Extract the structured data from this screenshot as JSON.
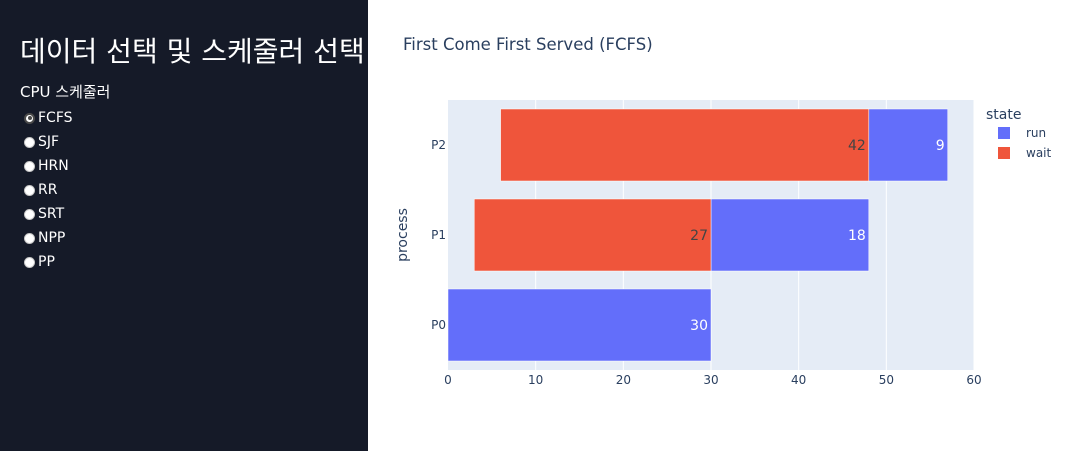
{
  "sidebar": {
    "title": "데이터 선택 및 스케줄러 선택",
    "group_label": "CPU 스케줄러",
    "options": [
      {
        "label": "FCFS",
        "checked": true
      },
      {
        "label": "SJF",
        "checked": false
      },
      {
        "label": "HRN",
        "checked": false
      },
      {
        "label": "RR",
        "checked": false
      },
      {
        "label": "SRT",
        "checked": false
      },
      {
        "label": "NPP",
        "checked": false
      },
      {
        "label": "PP",
        "checked": false
      }
    ]
  },
  "colors": {
    "sidebar_bg": "#151a28",
    "plot_bg": "#e5ecf6",
    "run": "#636efa",
    "wait": "#ef553b"
  },
  "chart_data": {
    "type": "bar",
    "orientation": "horizontal",
    "barmode": "stack",
    "title": "First Come First Served (FCFS)",
    "xlabel": "",
    "ylabel": "process",
    "xlim": [
      0,
      60
    ],
    "xticks": [
      0,
      10,
      20,
      30,
      40,
      50,
      60
    ],
    "categories": [
      "P0",
      "P1",
      "P2"
    ],
    "legend_title": "state",
    "legend_position": "right",
    "series": [
      {
        "name": "run",
        "color": "#636efa",
        "bars": [
          {
            "category": "P0",
            "start": 0,
            "end": 30,
            "label": "30"
          },
          {
            "category": "P1",
            "start": 30,
            "end": 48,
            "label": "18"
          },
          {
            "category": "P2",
            "start": 48,
            "end": 57,
            "label": "9"
          }
        ]
      },
      {
        "name": "wait",
        "color": "#ef553b",
        "bars": [
          {
            "category": "P1",
            "start": 3,
            "end": 30,
            "label": "27"
          },
          {
            "category": "P2",
            "start": 6,
            "end": 48,
            "label": "42"
          }
        ]
      }
    ]
  }
}
